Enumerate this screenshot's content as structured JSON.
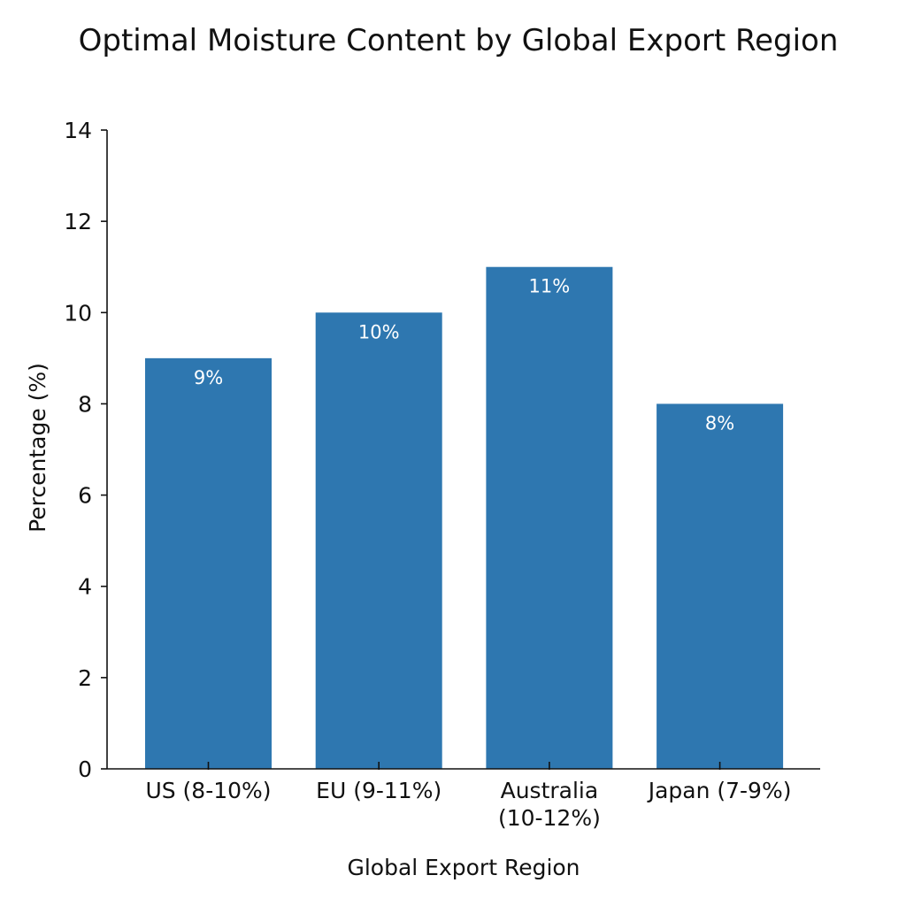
{
  "chart_data": {
    "type": "bar",
    "title": "Optimal Moisture Content by Global Export Region",
    "xlabel": "Global Export Region",
    "ylabel": "Percentage (%)",
    "categories": [
      "US (8-10%)",
      "EU (9-11%)",
      "Australia\n(10-12%)",
      "Japan (7-9%)"
    ],
    "values": [
      9,
      10,
      11,
      8
    ],
    "data_labels": [
      "9%",
      "10%",
      "11%",
      "8%"
    ],
    "ylim": [
      0,
      14
    ],
    "yticks": [
      0,
      2,
      4,
      6,
      8,
      10,
      12,
      14
    ],
    "grid": false,
    "legend": "none",
    "bar_color": "#2e77b0",
    "label_color": "#ffffff"
  }
}
